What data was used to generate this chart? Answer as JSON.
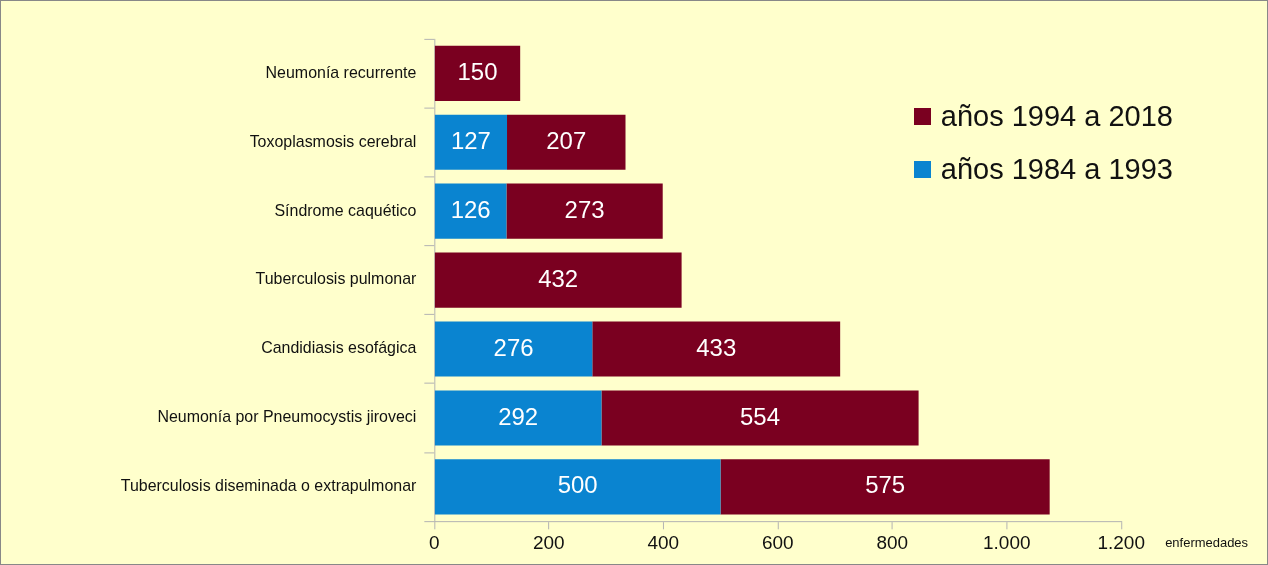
{
  "chart_data": {
    "type": "bar",
    "orientation": "horizontal",
    "stacked": true,
    "xlabel": "enfermedades",
    "categories": [
      "Neumonía recurrente",
      "Toxoplasmosis cerebral",
      "Síndrome caquético",
      "Tuberculosis pulmonar",
      "Candidiasis esofágica",
      "Neumonía por Pneumocystis jiroveci",
      "Tuberculosis diseminada o extrapulmonar"
    ],
    "series": [
      {
        "name": "años 1984 a 1993",
        "color": "#0a84d0",
        "values": [
          null,
          127,
          126,
          null,
          276,
          292,
          500
        ]
      },
      {
        "name": "años 1994 a 2018",
        "color": "#7a0020",
        "values": [
          150,
          207,
          273,
          432,
          433,
          554,
          575
        ]
      }
    ],
    "xlim": [
      0,
      1200
    ],
    "xticks": [
      0,
      200,
      400,
      600,
      {
        "value": 1000,
        "label": "1.000"
      },
      {
        "value": 1200,
        "label": "1.200"
      },
      800
    ],
    "data_labels": true,
    "legend": "top right",
    "grid": false
  }
}
